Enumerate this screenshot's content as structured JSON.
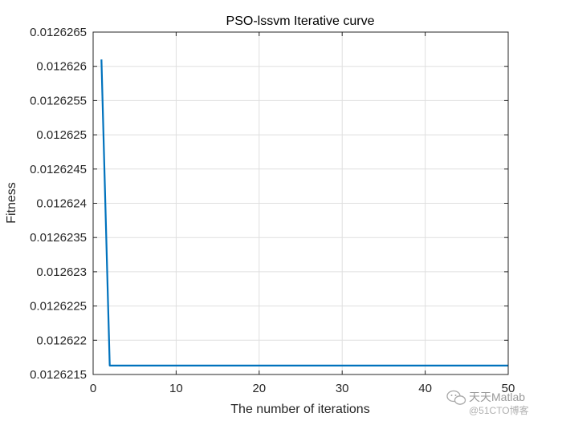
{
  "chart_data": {
    "type": "line",
    "title": "PSO-lssvm Iterative curve",
    "xlabel": "The number of iterations",
    "ylabel": "Fitness",
    "xlim": [
      0,
      50
    ],
    "ylim": [
      0.0126215,
      0.0126265
    ],
    "xticks": [
      0,
      10,
      20,
      30,
      40,
      50
    ],
    "xtick_labels": [
      "0",
      "10",
      "20",
      "30",
      "40",
      "50"
    ],
    "yticks": [
      0.0126215,
      0.012622,
      0.0126225,
      0.012623,
      0.0126235,
      0.012624,
      0.0126245,
      0.012625,
      0.0126255,
      0.012626,
      0.0126265
    ],
    "ytick_labels": [
      "0.0126215",
      "0.012622",
      "0.0126225",
      "0.012623",
      "0.0126235",
      "0.012624",
      "0.0126245",
      "0.012625",
      "0.0126255",
      "0.012626",
      "0.0126265"
    ],
    "grid": true,
    "series": [
      {
        "color": "#0072BD",
        "x": [
          1,
          2,
          50
        ],
        "y": [
          0.0126261,
          0.01262163,
          0.01262163
        ]
      }
    ]
  },
  "watermark": {
    "brand": "天天Matlab",
    "sub": "@51CTO博客",
    "icon": "wechat-icon"
  }
}
